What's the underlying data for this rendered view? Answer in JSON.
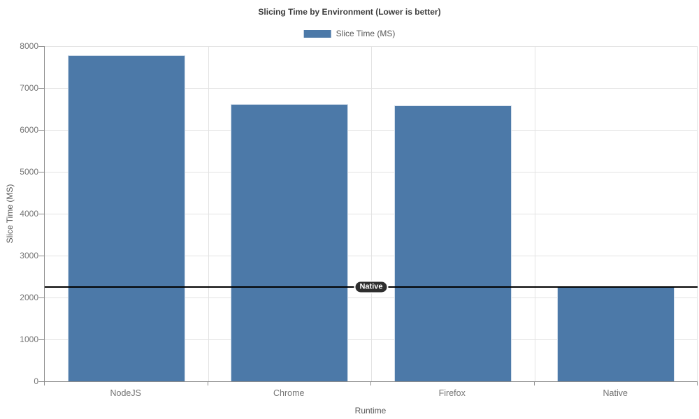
{
  "title": "Slicing Time by Environment (Lower is better)",
  "legend": {
    "label": "Slice Time (MS)"
  },
  "axes": {
    "x_label": "Runtime",
    "y_label": "Slice Time (MS)"
  },
  "chart_data": {
    "type": "bar",
    "title": "Slicing Time by Environment (Lower is better)",
    "categories": [
      "NodeJS",
      "Chrome",
      "Firefox",
      "Native"
    ],
    "series": [
      {
        "name": "Slice Time (MS)",
        "color": "#4c79a8",
        "values": [
          7780,
          6610,
          6580,
          2250
        ]
      }
    ],
    "xlabel": "Runtime",
    "ylabel": "Slice Time (MS)",
    "ylim": [
      0,
      8000
    ],
    "yticks": [
      0,
      1000,
      2000,
      3000,
      4000,
      5000,
      6000,
      7000,
      8000
    ],
    "grid": true,
    "legend_position": "top-center",
    "annotations": [
      {
        "type": "horizontal-line",
        "value": 2250,
        "label": "Native",
        "line_color": "#000000",
        "label_bg": "#2e2e2e",
        "label_text_color": "#ffffff"
      }
    ]
  },
  "colors": {
    "bar": "#4c79a8",
    "bar_border": "#d5e0ec",
    "grid_line": "#e3e3e3",
    "axis_line": "#8c8c8c",
    "tick_text": "#757575",
    "label_text": "#595959",
    "title_text": "#3d3d3d",
    "background": "#ffffff"
  }
}
